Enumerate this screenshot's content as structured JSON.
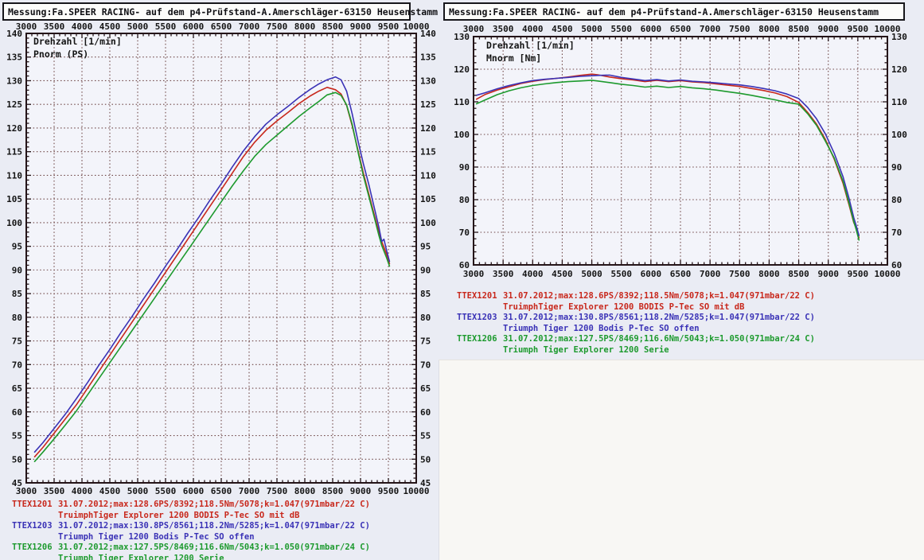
{
  "header": {
    "title": "Messung:Fa.SPEER RACING- auf dem p4-Prüfstand-A.Amerschläger-63150 Heusenstamm"
  },
  "colors": {
    "paper": "#eaecf4",
    "plot_bg": "#f3f4fa",
    "grid": "#6e4545",
    "frame": "#241418",
    "text": "#141414",
    "red": "#c8281c",
    "blue": "#3a32b6",
    "green": "#1d9a2e"
  },
  "legend": [
    {
      "id": "TTEX1201",
      "color": "#c8281c",
      "line1": "31.07.2012;max:128.6PS/8392;118.5Nm/5078;k=1.047(971mbar/22 C)",
      "line2": "TruimphTiger Explorer 1200 BODIS P-Tec SO mit dB"
    },
    {
      "id": "TTEX1203",
      "color": "#3a32b6",
      "line1": "31.07.2012;max:130.8PS/8561;118.2Nm/5285;k=1.047(971mbar/22 C)",
      "line2": "Triumph Tiger 1200 Bodis P-Tec SO offen"
    },
    {
      "id": "TTEX1206",
      "color": "#1d9a2e",
      "line1": "31.07.2012;max:127.5PS/8469;116.6Nm/5043;k=1.050(971mbar/24 C)",
      "line2": "Triumph Tiger Explorer 1200 Serie"
    }
  ],
  "chart_data": [
    {
      "type": "line",
      "name": "power",
      "xlabel": "Drehzahl [1/min]",
      "ylabel": "Pnorm (PS)",
      "xlim": [
        3000,
        10000
      ],
      "ylim": [
        45,
        140
      ],
      "xtick_major": 500,
      "xtick_minor": 100,
      "ytick_major": 5,
      "ytick_minor": 1,
      "grid": true,
      "x": [
        3150,
        3300,
        3500,
        3700,
        3900,
        4100,
        4300,
        4500,
        4700,
        4900,
        5100,
        5300,
        5500,
        5700,
        5900,
        6100,
        6300,
        6500,
        6700,
        6900,
        7100,
        7300,
        7500,
        7700,
        7900,
        8100,
        8250,
        8400,
        8550,
        8650,
        8750,
        8850,
        8950,
        9050,
        9150,
        9250,
        9330,
        9380,
        9420,
        9470,
        9520
      ],
      "series": [
        {
          "name": "TTEX1201",
          "color": "#c8281c",
          "values": [
            50.5,
            52.5,
            55.5,
            58.5,
            61.5,
            65,
            68.5,
            72,
            75.5,
            79,
            82.5,
            86,
            89.5,
            93,
            96.5,
            100,
            103.5,
            107,
            110.5,
            114,
            117,
            119.5,
            121.5,
            123.3,
            125.2,
            126.8,
            127.8,
            128.6,
            128.1,
            127.2,
            124.8,
            120.5,
            115.5,
            110.5,
            106,
            101.5,
            98,
            96,
            94.8,
            93.2,
            91.3
          ]
        },
        {
          "name": "TTEX1203",
          "color": "#3a32b6",
          "values": [
            51.5,
            53.5,
            56.5,
            59.5,
            62.8,
            66.2,
            69.8,
            73.2,
            76.8,
            80.2,
            83.8,
            87.2,
            90.8,
            94.2,
            97.8,
            101.2,
            104.8,
            108.2,
            111.8,
            115.2,
            118.2,
            120.8,
            122.8,
            124.6,
            126.5,
            128.2,
            129.3,
            130.2,
            130.8,
            130.2,
            127.8,
            123,
            117.5,
            112.5,
            108,
            103,
            99,
            96,
            96.5,
            94,
            91.8
          ]
        },
        {
          "name": "TTEX1206",
          "color": "#1d9a2e",
          "values": [
            49.5,
            51.5,
            54.3,
            57.2,
            60.2,
            63.6,
            67,
            70.4,
            73.8,
            77.2,
            80.6,
            84,
            87.4,
            90.8,
            94.2,
            97.6,
            101,
            104.4,
            107.8,
            111,
            114,
            116.5,
            118.5,
            120.5,
            122.5,
            124.3,
            125.6,
            127,
            127.5,
            126.9,
            124.9,
            120.8,
            115.2,
            110,
            105.5,
            101,
            97.3,
            95.2,
            94,
            92.5,
            90.8
          ]
        }
      ]
    },
    {
      "type": "line",
      "name": "torque",
      "xlabel": "Drehzahl [1/min]",
      "ylabel": "Mnorm [Nm]",
      "xlim": [
        3000,
        10000
      ],
      "ylim": [
        60,
        130
      ],
      "xtick_major": 500,
      "xtick_minor": 100,
      "ytick_major": 10,
      "ytick_minor": 2,
      "grid": true,
      "x": [
        3050,
        3200,
        3400,
        3600,
        3800,
        4000,
        4200,
        4400,
        4600,
        4800,
        5000,
        5100,
        5300,
        5500,
        5700,
        5900,
        6100,
        6300,
        6500,
        6700,
        6900,
        7100,
        7300,
        7500,
        7700,
        7900,
        8100,
        8300,
        8500,
        8650,
        8800,
        8950,
        9100,
        9250,
        9350,
        9430,
        9470,
        9520
      ],
      "series": [
        {
          "name": "TTEX1201",
          "color": "#c8281c",
          "values": [
            110.8,
            112.3,
            113.6,
            114.6,
            115.6,
            116.3,
            116.8,
            117.2,
            117.6,
            118.1,
            118.5,
            118.3,
            117.6,
            117.1,
            116.7,
            116.2,
            116.6,
            116.2,
            116.5,
            116.1,
            115.9,
            115.5,
            115.1,
            114.7,
            114.1,
            113.5,
            112.7,
            111.6,
            109.8,
            106.8,
            103.2,
            98.5,
            92.5,
            85.0,
            78.5,
            73.0,
            71.5,
            68.3
          ]
        },
        {
          "name": "TTEX1203",
          "color": "#3a32b6",
          "values": [
            112.0,
            112.8,
            114.0,
            115.0,
            115.8,
            116.5,
            116.9,
            117.2,
            117.5,
            117.8,
            118.0,
            118.1,
            118.2,
            117.5,
            117.0,
            116.5,
            116.8,
            116.4,
            116.7,
            116.3,
            116.1,
            115.8,
            115.5,
            115.2,
            114.7,
            114.1,
            113.4,
            112.4,
            111.0,
            108.3,
            104.8,
            100.2,
            94.3,
            87.0,
            80.5,
            74.5,
            72.2,
            69.0
          ]
        },
        {
          "name": "TTEX1206",
          "color": "#1d9a2e",
          "values": [
            109.4,
            110.6,
            112.2,
            113.4,
            114.3,
            115.0,
            115.5,
            115.9,
            116.2,
            116.4,
            116.6,
            116.4,
            115.9,
            115.4,
            115.0,
            114.5,
            114.8,
            114.4,
            114.7,
            114.3,
            114.0,
            113.6,
            113.1,
            112.6,
            112.0,
            111.3,
            110.6,
            109.8,
            109.3,
            106.4,
            102.8,
            98.0,
            92.8,
            85.6,
            79.0,
            73.3,
            71.0,
            67.6
          ]
        }
      ]
    }
  ]
}
